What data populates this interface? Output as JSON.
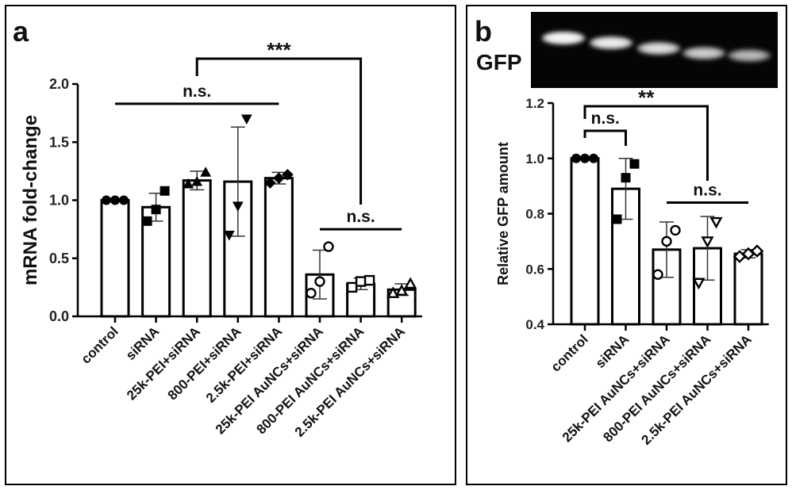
{
  "chart_data": [
    {
      "panel_label": "a",
      "type": "bar",
      "ylabel": "mRNA fold-change",
      "xlabel": "",
      "ylim": [
        0,
        2.0
      ],
      "yticks": [
        "0.0",
        "0.5",
        "1.0",
        "1.5",
        "2.0"
      ],
      "categories": [
        "control",
        "siRNA",
        "25k-PEI+siRNA",
        "800-PEI+siRNA",
        "2.5k-PEI+siRNA",
        "25k-PEI AuNCs+siRNA",
        "800-PEI AuNCs+siRNA",
        "2.5k-PEI AuNCs+siRNA"
      ],
      "values": [
        1.0,
        0.94,
        1.17,
        1.16,
        1.19,
        0.36,
        0.28,
        0.23
      ],
      "error": [
        0.0,
        0.12,
        0.08,
        0.47,
        0.05,
        0.21,
        0.05,
        0.05
      ],
      "markers": [
        "circle-filled",
        "square-filled",
        "triangle-up-filled",
        "triangle-down-filled",
        "diamond-filled",
        "circle-open",
        "square-open",
        "triangle-up-open"
      ],
      "points": [
        [
          1.0,
          1.0,
          1.0
        ],
        [
          0.82,
          0.92,
          1.08
        ],
        [
          1.14,
          1.16,
          1.24
        ],
        [
          0.7,
          0.95,
          1.7
        ],
        [
          1.15,
          1.19,
          1.22
        ],
        [
          0.2,
          0.3,
          0.6
        ],
        [
          0.25,
          0.3,
          0.31
        ],
        [
          0.2,
          0.22,
          0.28
        ]
      ],
      "significance": [
        {
          "text": "n.s.",
          "from": 0,
          "to": 4,
          "y": 1.83,
          "style": "line"
        },
        {
          "text": "***",
          "from": 2,
          "to": 6,
          "y": 2.3,
          "style": "bracket"
        },
        {
          "text": "n.s.",
          "from": 5,
          "to": 7,
          "y": 0.75,
          "style": "line"
        }
      ]
    },
    {
      "panel_label": "b",
      "type": "bar",
      "ylabel": "Relative GFP amount",
      "xlabel": "",
      "ylim": [
        0.4,
        1.2
      ],
      "yticks": [
        "0.4",
        "0.6",
        "0.8",
        "1.0",
        "1.2"
      ],
      "categories": [
        "control",
        "siRNA",
        "25k-PEI AuNCs+siRNA",
        "800-PEI AuNCs+siRNA",
        "2.5k-PEI AuNCs+siRNA"
      ],
      "values": [
        1.0,
        0.89,
        0.67,
        0.675,
        0.655
      ],
      "error": [
        0.0,
        0.11,
        0.1,
        0.115,
        0.015
      ],
      "markers": [
        "circle-filled",
        "square-filled",
        "circle-open",
        "triangle-down-open",
        "diamond-open"
      ],
      "points": [
        [
          1.0,
          1.0,
          1.0
        ],
        [
          0.78,
          0.93,
          0.98
        ],
        [
          0.58,
          0.7,
          0.74
        ],
        [
          0.55,
          0.7,
          0.77
        ],
        [
          0.645,
          0.655,
          0.665
        ]
      ],
      "significance": [
        {
          "text": "n.s.",
          "from": 0,
          "to": 1,
          "y": 1.1,
          "style": "bracket"
        },
        {
          "text": "**",
          "from": 0,
          "to": 3,
          "y": 1.2,
          "style": "bracket"
        },
        {
          "text": "n.s.",
          "from": 2,
          "to": 4,
          "y": 0.84,
          "style": "line"
        }
      ],
      "gel_label": "GFP",
      "gel_band_count": 5
    }
  ]
}
